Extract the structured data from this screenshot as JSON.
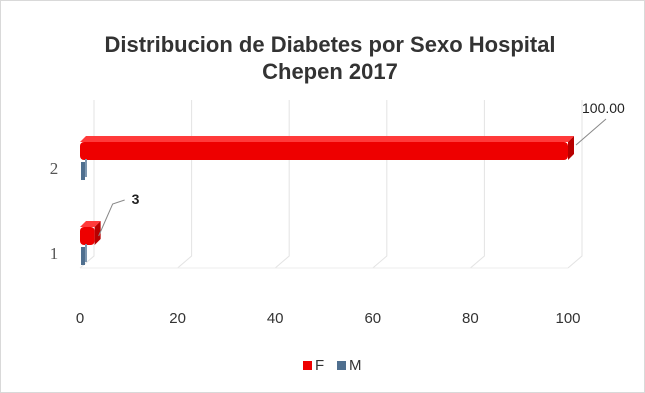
{
  "chart_data": {
    "type": "bar",
    "orientation": "horizontal",
    "title_line1": "Distribucion de Diabetes por Sexo  Hospital",
    "title_line2": "Chepen 2017",
    "categories": [
      "1",
      "2"
    ],
    "series": [
      {
        "name": "F",
        "values": [
          3,
          100
        ],
        "color": "#ee0000"
      },
      {
        "name": "M",
        "values": [
          0,
          0
        ],
        "color": "#4f6f8f"
      }
    ],
    "data_labels": [
      "3",
      "100.00"
    ],
    "x_ticks": [
      "0",
      "20",
      "40",
      "60",
      "80",
      "100"
    ],
    "xlim": [
      0,
      100
    ],
    "grid": true,
    "legend_position": "bottom"
  }
}
